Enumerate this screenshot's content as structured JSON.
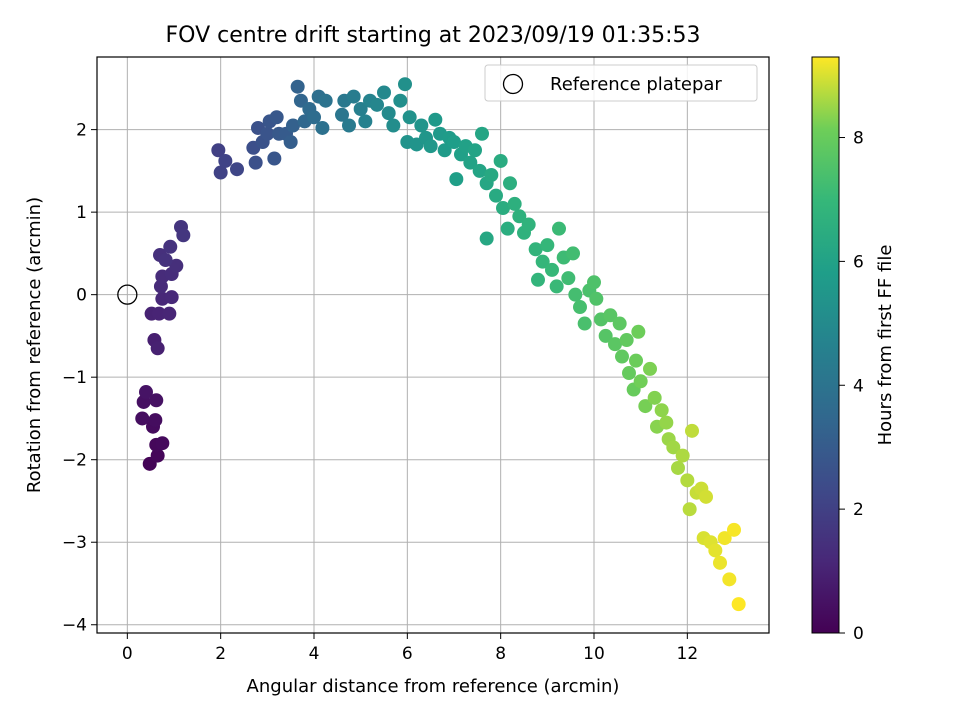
{
  "chart_data": {
    "type": "scatter",
    "title": "FOV centre drift starting at 2023/09/19 01:35:53",
    "xlabel": "Angular distance from reference (arcmin)",
    "ylabel": "Rotation from reference (arcmin)",
    "xlim": [
      -0.65,
      13.75
    ],
    "ylim": [
      -4.1,
      2.88
    ],
    "xticks": [
      0,
      2,
      4,
      6,
      8,
      10,
      12
    ],
    "yticks": [
      -4,
      -3,
      -2,
      -1,
      0,
      1,
      2
    ],
    "grid": true,
    "legend": {
      "position": "top-right",
      "entries": [
        "Reference platepar"
      ]
    },
    "reference_point": {
      "x": 0,
      "y": 0
    },
    "colorbar": {
      "label": "Hours from first FF file",
      "colormap": "viridis",
      "range": [
        0,
        9.3
      ],
      "ticks": [
        0,
        2,
        4,
        6,
        8
      ]
    },
    "series": [
      {
        "color_by": "hours",
        "points": [
          {
            "x": 0.48,
            "y": -2.05,
            "h": 0.1
          },
          {
            "x": 0.65,
            "y": -1.95,
            "h": 0.15
          },
          {
            "x": 0.62,
            "y": -1.82,
            "h": 0.2
          },
          {
            "x": 0.75,
            "y": -1.8,
            "h": 0.25
          },
          {
            "x": 0.55,
            "y": -1.6,
            "h": 0.3
          },
          {
            "x": 0.6,
            "y": -1.52,
            "h": 0.35
          },
          {
            "x": 0.32,
            "y": -1.5,
            "h": 0.4
          },
          {
            "x": 0.35,
            "y": -1.3,
            "h": 0.45
          },
          {
            "x": 0.62,
            "y": -1.28,
            "h": 0.5
          },
          {
            "x": 0.4,
            "y": -1.18,
            "h": 0.55
          },
          {
            "x": 0.58,
            "y": -0.55,
            "h": 0.9
          },
          {
            "x": 0.65,
            "y": -0.65,
            "h": 0.95
          },
          {
            "x": 0.52,
            "y": -0.23,
            "h": 1.0
          },
          {
            "x": 0.68,
            "y": -0.23,
            "h": 1.05
          },
          {
            "x": 0.9,
            "y": -0.23,
            "h": 1.1
          },
          {
            "x": 0.75,
            "y": -0.05,
            "h": 1.15
          },
          {
            "x": 0.95,
            "y": -0.03,
            "h": 1.2
          },
          {
            "x": 0.72,
            "y": 0.1,
            "h": 1.25
          },
          {
            "x": 0.75,
            "y": 0.22,
            "h": 1.3
          },
          {
            "x": 0.95,
            "y": 0.25,
            "h": 1.35
          },
          {
            "x": 1.05,
            "y": 0.35,
            "h": 1.4
          },
          {
            "x": 0.7,
            "y": 0.48,
            "h": 1.45
          },
          {
            "x": 0.82,
            "y": 0.42,
            "h": 1.5
          },
          {
            "x": 0.92,
            "y": 0.58,
            "h": 1.55
          },
          {
            "x": 1.15,
            "y": 0.82,
            "h": 1.6
          },
          {
            "x": 1.2,
            "y": 0.72,
            "h": 1.65
          },
          {
            "x": 1.95,
            "y": 1.75,
            "h": 2.0
          },
          {
            "x": 2.0,
            "y": 1.48,
            "h": 2.05
          },
          {
            "x": 2.1,
            "y": 1.62,
            "h": 2.1
          },
          {
            "x": 2.35,
            "y": 1.52,
            "h": 2.2
          },
          {
            "x": 2.7,
            "y": 1.78,
            "h": 2.5
          },
          {
            "x": 2.75,
            "y": 1.6,
            "h": 2.55
          },
          {
            "x": 2.8,
            "y": 2.02,
            "h": 2.6
          },
          {
            "x": 2.9,
            "y": 1.85,
            "h": 2.65
          },
          {
            "x": 3.0,
            "y": 1.95,
            "h": 2.7
          },
          {
            "x": 3.05,
            "y": 2.1,
            "h": 2.75
          },
          {
            "x": 3.15,
            "y": 1.65,
            "h": 2.8
          },
          {
            "x": 3.2,
            "y": 2.15,
            "h": 2.85
          },
          {
            "x": 3.25,
            "y": 1.95,
            "h": 2.9
          },
          {
            "x": 3.4,
            "y": 1.95,
            "h": 3.0
          },
          {
            "x": 3.5,
            "y": 1.85,
            "h": 3.1
          },
          {
            "x": 3.55,
            "y": 2.05,
            "h": 3.2
          },
          {
            "x": 3.65,
            "y": 2.52,
            "h": 3.3
          },
          {
            "x": 3.72,
            "y": 2.35,
            "h": 3.4
          },
          {
            "x": 3.8,
            "y": 2.1,
            "h": 3.5
          },
          {
            "x": 3.9,
            "y": 2.25,
            "h": 3.6
          },
          {
            "x": 4.0,
            "y": 2.15,
            "h": 3.7
          },
          {
            "x": 4.1,
            "y": 2.4,
            "h": 3.8
          },
          {
            "x": 4.18,
            "y": 2.02,
            "h": 3.9
          },
          {
            "x": 4.25,
            "y": 2.35,
            "h": 4.0
          },
          {
            "x": 4.6,
            "y": 2.18,
            "h": 4.1
          },
          {
            "x": 4.65,
            "y": 2.35,
            "h": 4.2
          },
          {
            "x": 4.75,
            "y": 2.05,
            "h": 4.3
          },
          {
            "x": 4.85,
            "y": 2.4,
            "h": 4.4
          },
          {
            "x": 5.0,
            "y": 2.25,
            "h": 4.5
          },
          {
            "x": 5.1,
            "y": 2.1,
            "h": 4.6
          },
          {
            "x": 5.2,
            "y": 2.35,
            "h": 4.7
          },
          {
            "x": 5.35,
            "y": 2.3,
            "h": 4.8
          },
          {
            "x": 5.5,
            "y": 2.45,
            "h": 4.9
          },
          {
            "x": 5.6,
            "y": 2.2,
            "h": 5.0
          },
          {
            "x": 5.7,
            "y": 2.05,
            "h": 5.1
          },
          {
            "x": 5.85,
            "y": 2.35,
            "h": 5.2
          },
          {
            "x": 5.95,
            "y": 2.55,
            "h": 5.25
          },
          {
            "x": 6.05,
            "y": 2.15,
            "h": 5.3
          },
          {
            "x": 6.0,
            "y": 1.85,
            "h": 5.35
          },
          {
            "x": 6.2,
            "y": 1.82,
            "h": 5.4
          },
          {
            "x": 6.3,
            "y": 2.05,
            "h": 5.45
          },
          {
            "x": 6.4,
            "y": 1.9,
            "h": 5.5
          },
          {
            "x": 6.5,
            "y": 1.8,
            "h": 5.55
          },
          {
            "x": 6.6,
            "y": 2.12,
            "h": 5.6
          },
          {
            "x": 6.7,
            "y": 1.95,
            "h": 5.65
          },
          {
            "x": 6.8,
            "y": 1.75,
            "h": 5.7
          },
          {
            "x": 6.9,
            "y": 1.9,
            "h": 5.75
          },
          {
            "x": 7.0,
            "y": 1.85,
            "h": 5.8
          },
          {
            "x": 7.05,
            "y": 1.4,
            "h": 5.85
          },
          {
            "x": 7.15,
            "y": 1.7,
            "h": 5.9
          },
          {
            "x": 7.25,
            "y": 1.8,
            "h": 5.95
          },
          {
            "x": 7.35,
            "y": 1.6,
            "h": 6.0
          },
          {
            "x": 7.45,
            "y": 1.75,
            "h": 6.05
          },
          {
            "x": 7.55,
            "y": 1.5,
            "h": 6.1
          },
          {
            "x": 7.6,
            "y": 1.95,
            "h": 6.15
          },
          {
            "x": 7.7,
            "y": 1.35,
            "h": 6.2
          },
          {
            "x": 7.7,
            "y": 0.68,
            "h": 6.25
          },
          {
            "x": 7.8,
            "y": 1.45,
            "h": 6.3
          },
          {
            "x": 7.9,
            "y": 1.2,
            "h": 6.35
          },
          {
            "x": 8.0,
            "y": 1.62,
            "h": 6.4
          },
          {
            "x": 8.05,
            "y": 1.05,
            "h": 6.45
          },
          {
            "x": 8.15,
            "y": 0.8,
            "h": 6.5
          },
          {
            "x": 8.2,
            "y": 1.35,
            "h": 6.55
          },
          {
            "x": 8.3,
            "y": 1.1,
            "h": 6.6
          },
          {
            "x": 8.4,
            "y": 0.95,
            "h": 6.65
          },
          {
            "x": 8.5,
            "y": 0.75,
            "h": 6.7
          },
          {
            "x": 8.6,
            "y": 0.85,
            "h": 6.75
          },
          {
            "x": 8.75,
            "y": 0.55,
            "h": 6.8
          },
          {
            "x": 8.8,
            "y": 0.18,
            "h": 6.85
          },
          {
            "x": 8.9,
            "y": 0.4,
            "h": 6.9
          },
          {
            "x": 9.0,
            "y": 0.6,
            "h": 6.95
          },
          {
            "x": 9.1,
            "y": 0.3,
            "h": 7.0
          },
          {
            "x": 9.2,
            "y": 0.1,
            "h": 7.05
          },
          {
            "x": 9.25,
            "y": 0.8,
            "h": 7.1
          },
          {
            "x": 9.35,
            "y": 0.45,
            "h": 7.15
          },
          {
            "x": 9.45,
            "y": 0.2,
            "h": 7.2
          },
          {
            "x": 9.55,
            "y": 0.5,
            "h": 7.25
          },
          {
            "x": 9.6,
            "y": 0.0,
            "h": 7.3
          },
          {
            "x": 9.7,
            "y": -0.15,
            "h": 7.35
          },
          {
            "x": 9.8,
            "y": -0.35,
            "h": 7.4
          },
          {
            "x": 9.9,
            "y": 0.05,
            "h": 7.45
          },
          {
            "x": 10.0,
            "y": 0.15,
            "h": 7.5
          },
          {
            "x": 10.05,
            "y": -0.05,
            "h": 7.55
          },
          {
            "x": 10.15,
            "y": -0.3,
            "h": 7.6
          },
          {
            "x": 10.25,
            "y": -0.5,
            "h": 7.65
          },
          {
            "x": 10.35,
            "y": -0.25,
            "h": 7.7
          },
          {
            "x": 10.45,
            "y": -0.6,
            "h": 7.75
          },
          {
            "x": 10.55,
            "y": -0.35,
            "h": 7.8
          },
          {
            "x": 10.6,
            "y": -0.75,
            "h": 7.85
          },
          {
            "x": 10.7,
            "y": -0.55,
            "h": 7.9
          },
          {
            "x": 10.75,
            "y": -0.95,
            "h": 7.95
          },
          {
            "x": 10.85,
            "y": -1.15,
            "h": 8.0
          },
          {
            "x": 10.9,
            "y": -0.8,
            "h": 8.05
          },
          {
            "x": 10.95,
            "y": -0.45,
            "h": 8.1
          },
          {
            "x": 11.0,
            "y": -1.05,
            "h": 8.15
          },
          {
            "x": 11.1,
            "y": -1.35,
            "h": 8.2
          },
          {
            "x": 11.2,
            "y": -0.9,
            "h": 8.25
          },
          {
            "x": 11.3,
            "y": -1.25,
            "h": 8.3
          },
          {
            "x": 11.35,
            "y": -1.6,
            "h": 8.35
          },
          {
            "x": 11.45,
            "y": -1.4,
            "h": 8.4
          },
          {
            "x": 11.55,
            "y": -1.55,
            "h": 8.45
          },
          {
            "x": 11.6,
            "y": -1.75,
            "h": 8.5
          },
          {
            "x": 11.7,
            "y": -1.85,
            "h": 8.55
          },
          {
            "x": 11.8,
            "y": -2.1,
            "h": 8.6
          },
          {
            "x": 11.9,
            "y": -1.95,
            "h": 8.65
          },
          {
            "x": 12.0,
            "y": -2.25,
            "h": 8.7
          },
          {
            "x": 12.05,
            "y": -2.6,
            "h": 8.75
          },
          {
            "x": 12.1,
            "y": -1.65,
            "h": 8.8
          },
          {
            "x": 12.2,
            "y": -2.4,
            "h": 8.85
          },
          {
            "x": 12.3,
            "y": -2.35,
            "h": 8.9
          },
          {
            "x": 12.4,
            "y": -2.45,
            "h": 8.95
          },
          {
            "x": 12.35,
            "y": -2.95,
            "h": 9.0
          },
          {
            "x": 12.5,
            "y": -3.0,
            "h": 9.05
          },
          {
            "x": 12.6,
            "y": -3.1,
            "h": 9.1
          },
          {
            "x": 12.7,
            "y": -3.25,
            "h": 9.15
          },
          {
            "x": 12.8,
            "y": -2.95,
            "h": 9.2
          },
          {
            "x": 12.9,
            "y": -3.45,
            "h": 9.22
          },
          {
            "x": 13.0,
            "y": -2.85,
            "h": 9.25
          },
          {
            "x": 13.1,
            "y": -3.75,
            "h": 9.3
          }
        ]
      }
    ]
  }
}
